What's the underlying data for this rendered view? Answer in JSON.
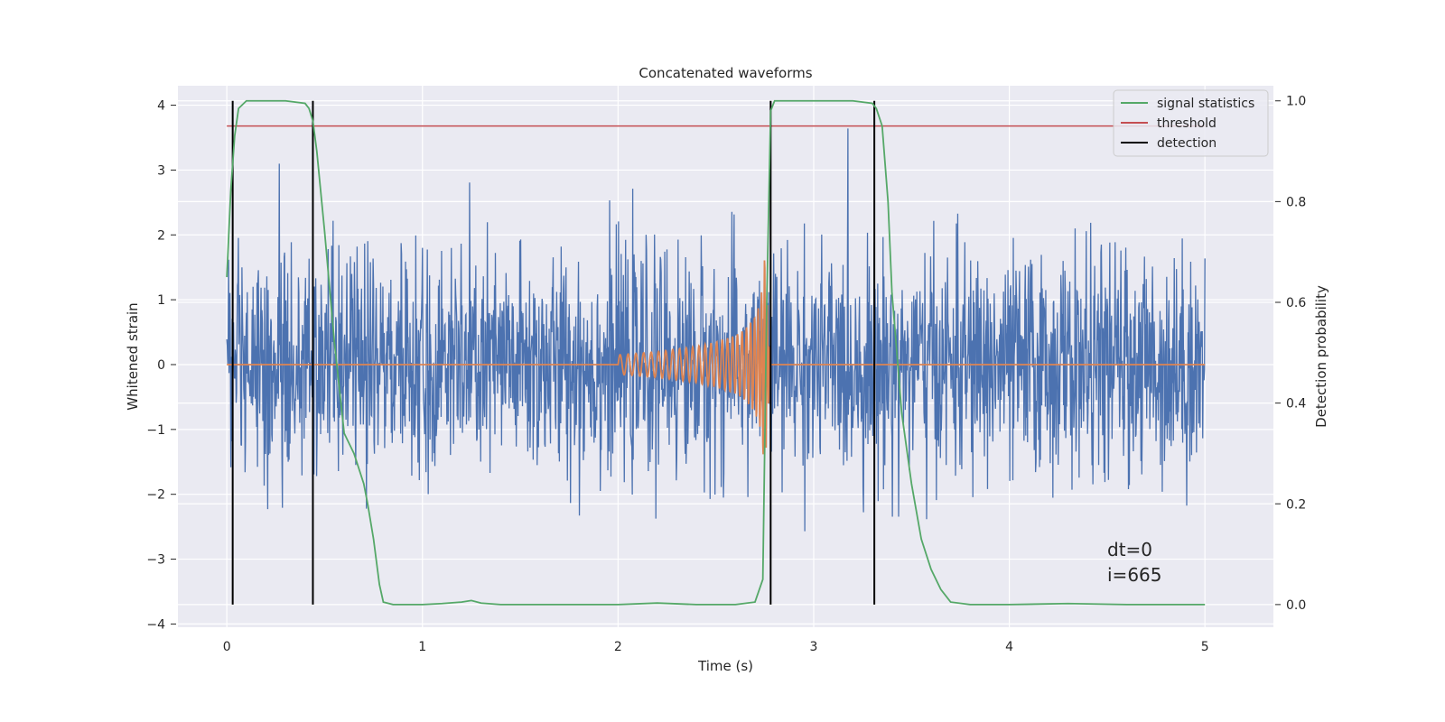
{
  "chart_data": {
    "type": "line",
    "title": "Concatenated waveforms",
    "xlabel": "Time (s)",
    "ylabel": "Whitened strain",
    "y2label": "Detection probability",
    "xlim": [
      -0.25,
      5.35
    ],
    "ylim": [
      -4.05,
      4.3
    ],
    "y2lim": [
      -0.045,
      1.03
    ],
    "x_ticks": [
      0,
      1,
      2,
      3,
      4,
      5
    ],
    "y_ticks": [
      -4,
      -3,
      -2,
      -1,
      0,
      1,
      2,
      3,
      4
    ],
    "y2_ticks": [
      0.0,
      0.2,
      0.4,
      0.6,
      0.8,
      1.0
    ],
    "x_tick_labels": [
      "0",
      "1",
      "2",
      "3",
      "4",
      "5"
    ],
    "y_tick_labels": [
      "−4",
      "−3",
      "−2",
      "−1",
      "0",
      "1",
      "2",
      "3",
      "4"
    ],
    "y2_tick_labels": [
      "0.0",
      "0.2",
      "0.4",
      "0.6",
      "0.8",
      "1.0"
    ],
    "grid": true,
    "legend_position": "top-right",
    "colors": {
      "background": "#eaeaf2",
      "grid": "#ffffff",
      "strain": "#4c72b0",
      "template": "#dd8452",
      "statistics": "#55a868",
      "threshold": "#c44e52",
      "detection": "#000000"
    },
    "series": [
      {
        "name": "",
        "axis": "left",
        "color": "#4c72b0",
        "description_samples": "noise",
        "x_range": [
          0,
          5
        ],
        "std": 0.85
      },
      {
        "name": "",
        "axis": "left",
        "color": "#dd8452",
        "x": [
          0,
          2.0,
          2.2,
          2.4,
          2.5,
          2.6,
          2.65,
          2.7,
          2.73,
          2.75,
          2.78,
          5.0
        ],
        "amplitude": [
          0,
          0.15,
          0.2,
          0.28,
          0.35,
          0.45,
          0.55,
          0.75,
          1.0,
          1.7,
          0,
          0
        ]
      },
      {
        "name": "signal statistics",
        "axis": "right",
        "color": "#55a868",
        "x": [
          0,
          0.02,
          0.04,
          0.06,
          0.1,
          0.15,
          0.2,
          0.3,
          0.4,
          0.42,
          0.44,
          0.46,
          0.5,
          0.55,
          0.6,
          0.65,
          0.7,
          0.72,
          0.75,
          0.78,
          0.8,
          0.85,
          0.9,
          1.0,
          1.1,
          1.2,
          1.25,
          1.3,
          1.4,
          1.6,
          1.8,
          2.0,
          2.2,
          2.4,
          2.6,
          2.7,
          2.74,
          2.76,
          2.78,
          2.8,
          2.85,
          3.0,
          3.2,
          3.3,
          3.32,
          3.35,
          3.38,
          3.4,
          3.45,
          3.5,
          3.55,
          3.6,
          3.65,
          3.7,
          3.8,
          4.0,
          4.3,
          4.6,
          5.0
        ],
        "y": [
          0.65,
          0.82,
          0.93,
          0.985,
          1.0,
          1.0,
          1.0,
          1.0,
          0.995,
          0.985,
          0.96,
          0.9,
          0.74,
          0.52,
          0.34,
          0.3,
          0.24,
          0.2,
          0.13,
          0.04,
          0.005,
          0.0,
          0.0,
          0.0,
          0.002,
          0.005,
          0.008,
          0.003,
          0.0,
          0.0,
          0.0,
          0.0,
          0.003,
          0.0,
          0.0,
          0.005,
          0.05,
          0.6,
          0.98,
          1.0,
          1.0,
          1.0,
          1.0,
          0.995,
          0.985,
          0.95,
          0.8,
          0.62,
          0.38,
          0.24,
          0.13,
          0.07,
          0.03,
          0.005,
          0.0,
          0.0,
          0.002,
          0.0,
          0.0
        ]
      },
      {
        "name": "threshold",
        "axis": "right",
        "color": "#c44e52",
        "x": [
          0,
          5
        ],
        "y": [
          0.95,
          0.95
        ]
      },
      {
        "name": "detection",
        "axis": "right",
        "color": "#000000",
        "x": [
          0.03,
          0.44,
          2.78,
          3.31
        ],
        "y_range": [
          0,
          1.0
        ]
      }
    ],
    "annotations": [
      "dt=0",
      "i=665"
    ]
  }
}
